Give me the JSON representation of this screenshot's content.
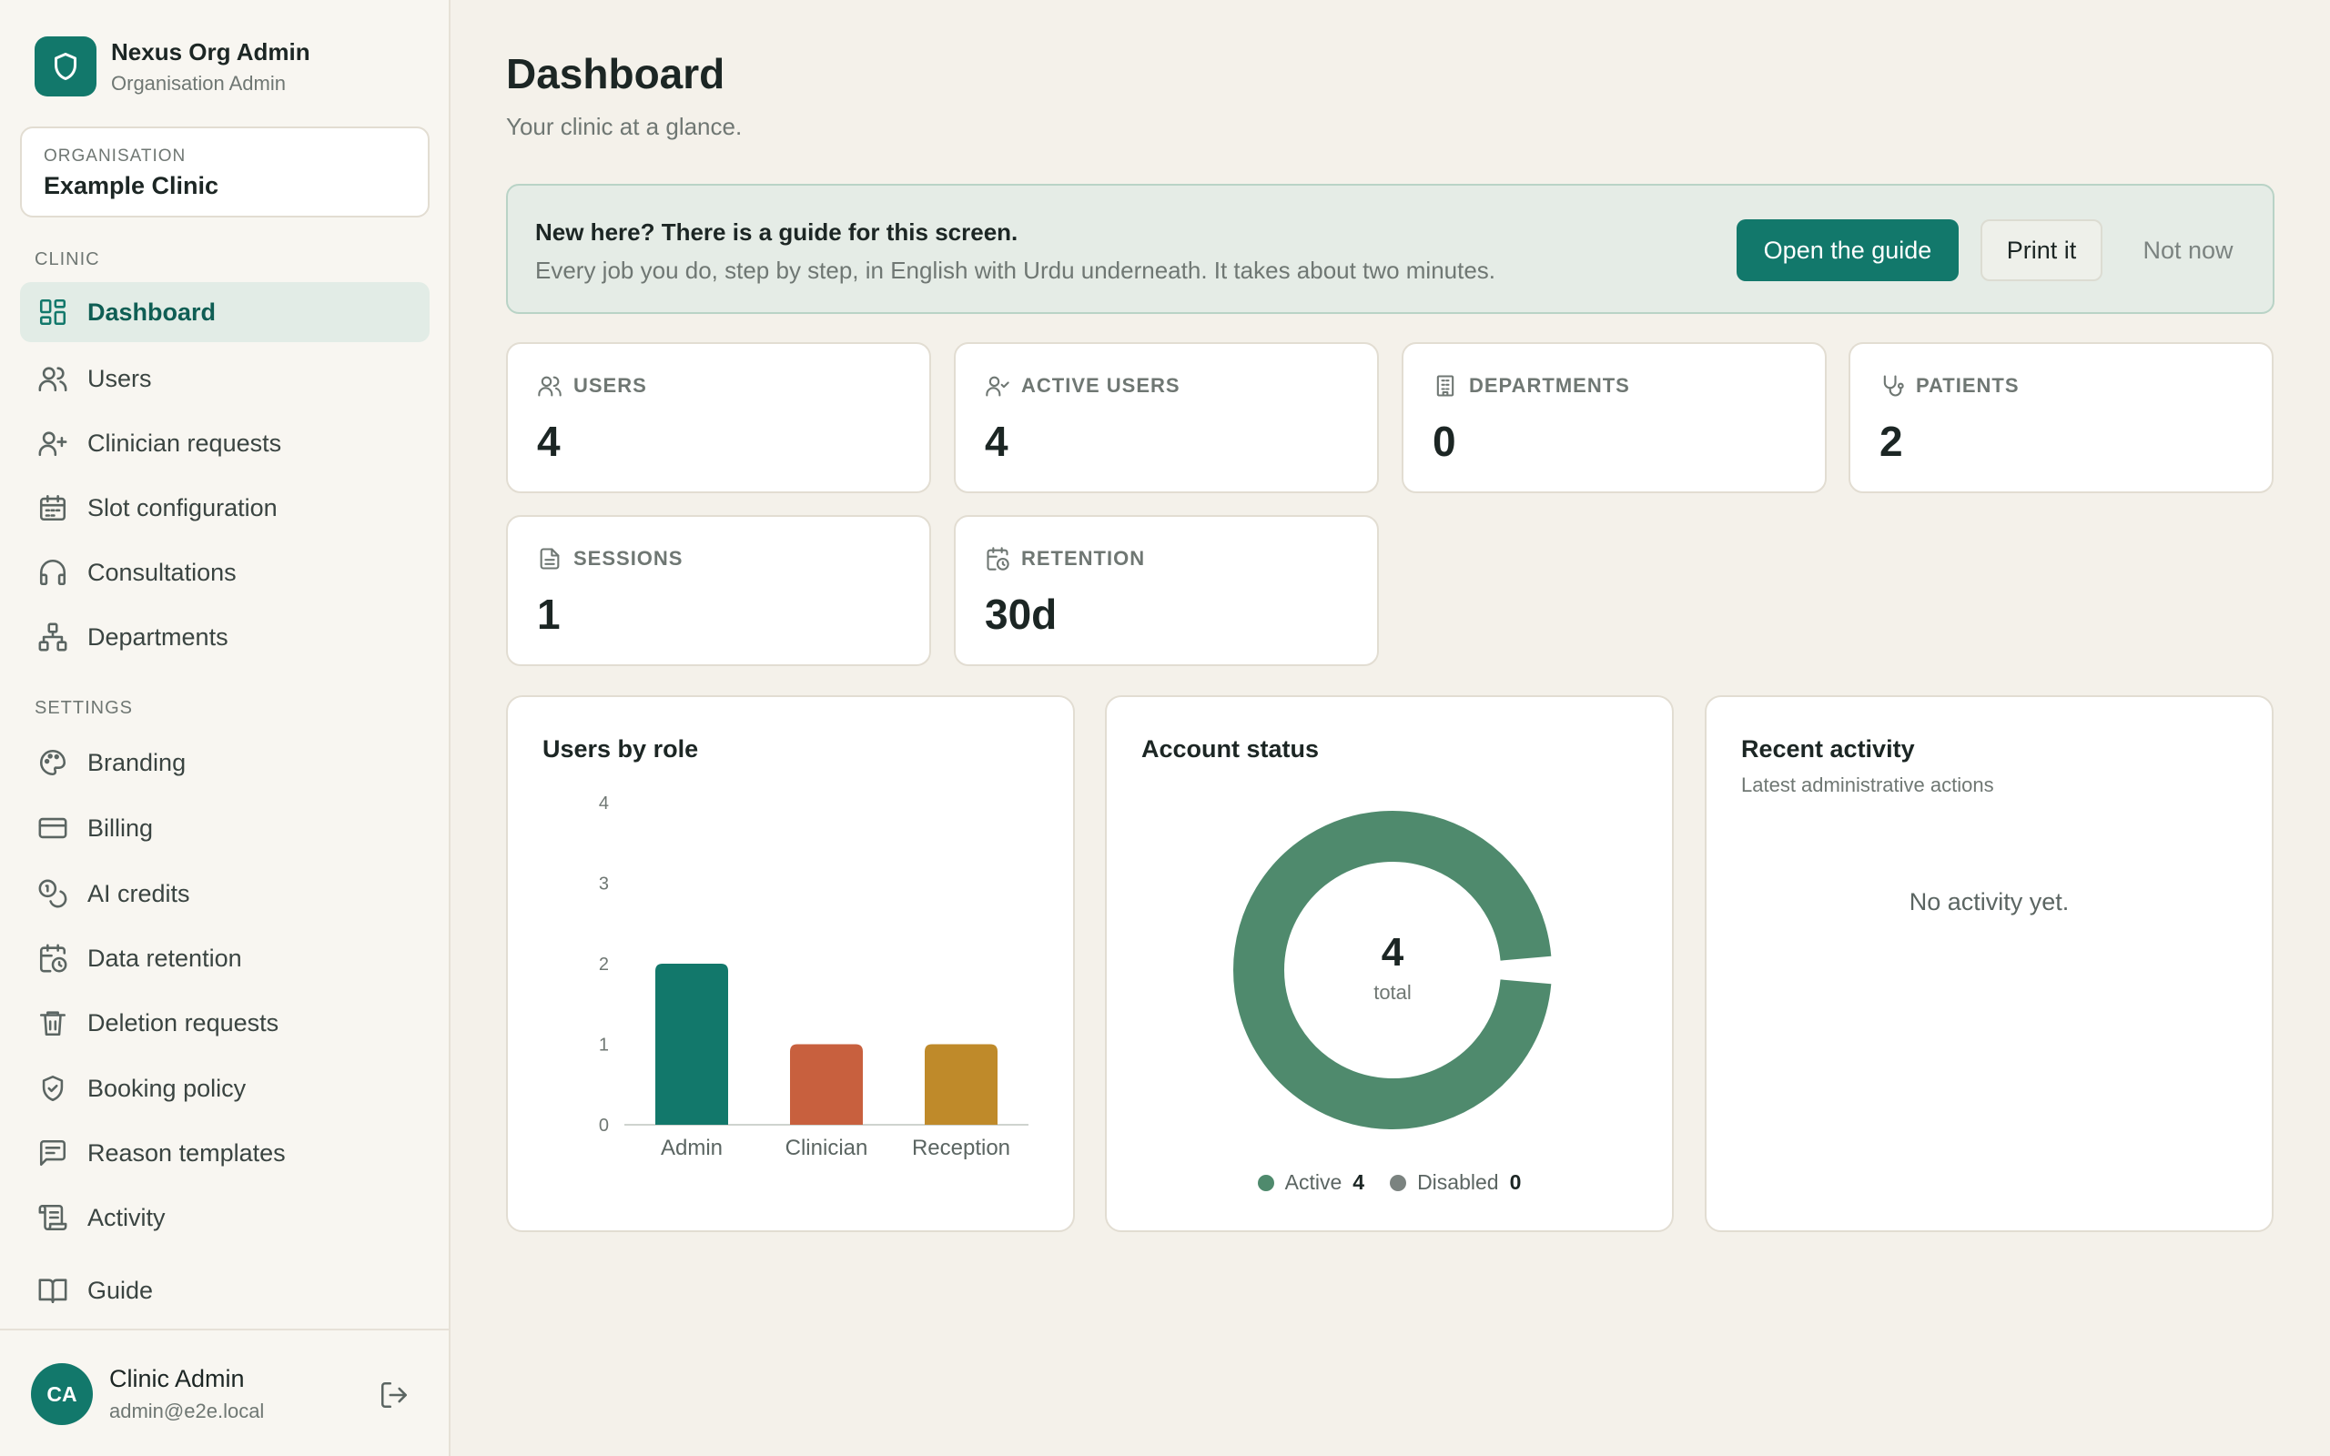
{
  "app": {
    "title": "Nexus Org Admin",
    "subtitle": "Organisation Admin",
    "logo_icon": "shield-icon",
    "accent": "#12786b"
  },
  "organisation": {
    "label": "Organisation",
    "name": "Example Clinic"
  },
  "sidebar": {
    "clinic_label": "Clinic",
    "clinic_items": [
      {
        "label": "Dashboard",
        "icon": "dashboard-icon",
        "active": true
      },
      {
        "label": "Users",
        "icon": "users-icon"
      },
      {
        "label": "Clinician requests",
        "icon": "user-plus-icon"
      },
      {
        "label": "Slot configuration",
        "icon": "calendar-icon"
      },
      {
        "label": "Consultations",
        "icon": "headphones-icon"
      },
      {
        "label": "Departments",
        "icon": "network-icon"
      }
    ],
    "settings_label": "Settings",
    "settings_items": [
      {
        "label": "Branding",
        "icon": "palette-icon"
      },
      {
        "label": "Billing",
        "icon": "credit-card-icon"
      },
      {
        "label": "AI credits",
        "icon": "coins-icon"
      },
      {
        "label": "Data retention",
        "icon": "calendar-clock-icon"
      },
      {
        "label": "Deletion requests",
        "icon": "trash-icon"
      },
      {
        "label": "Booking policy",
        "icon": "shield-check-icon"
      },
      {
        "label": "Reason templates",
        "icon": "message-square-icon"
      },
      {
        "label": "Activity",
        "icon": "scroll-icon"
      }
    ],
    "guide_item": {
      "label": "Guide",
      "icon": "book-icon"
    }
  },
  "user": {
    "initials": "CA",
    "name": "Clinic Admin",
    "email": "admin@e2e.local"
  },
  "header": {
    "title": "Dashboard",
    "subtitle": "Your clinic at a glance."
  },
  "banner": {
    "title": "New here? There is a guide for this screen.",
    "text": "Every job you do, step by step, in English with Urdu underneath. It takes about two minutes.",
    "primary": "Open the guide",
    "secondary": "Print it",
    "dismiss": "Not now"
  },
  "stats": [
    {
      "label": "Users",
      "value": "4",
      "icon": "users-icon"
    },
    {
      "label": "Active users",
      "value": "4",
      "icon": "user-check-icon"
    },
    {
      "label": "Departments",
      "value": "0",
      "icon": "building-icon"
    },
    {
      "label": "Patients",
      "value": "2",
      "icon": "stethoscope-icon"
    },
    {
      "label": "Sessions",
      "value": "1",
      "icon": "file-text-icon"
    },
    {
      "label": "Retention",
      "value": "30d",
      "icon": "calendar-clock-icon"
    }
  ],
  "users_by_role": {
    "title": "Users by role"
  },
  "account_status": {
    "title": "Account status",
    "center_value": "4",
    "center_label": "total"
  },
  "recent_activity": {
    "title": "Recent activity",
    "subtitle": "Latest administrative actions",
    "empty": "No activity yet."
  },
  "chart_data": [
    {
      "type": "bar",
      "title": "Users by role",
      "categories": [
        "Admin",
        "Clinician",
        "Reception"
      ],
      "values": [
        2,
        1,
        1
      ],
      "colors": [
        "#12786b",
        "#c8603e",
        "#bf8a2a"
      ],
      "yticks": [
        0,
        1,
        2,
        3,
        4
      ],
      "ylim": [
        0,
        4
      ],
      "grid": false
    },
    {
      "type": "pie",
      "title": "Account status",
      "categories": [
        "Active",
        "Disabled"
      ],
      "values": [
        4,
        0
      ],
      "colors": [
        "#4f8a6d",
        "#7b8380"
      ],
      "legend": "bottom"
    }
  ]
}
